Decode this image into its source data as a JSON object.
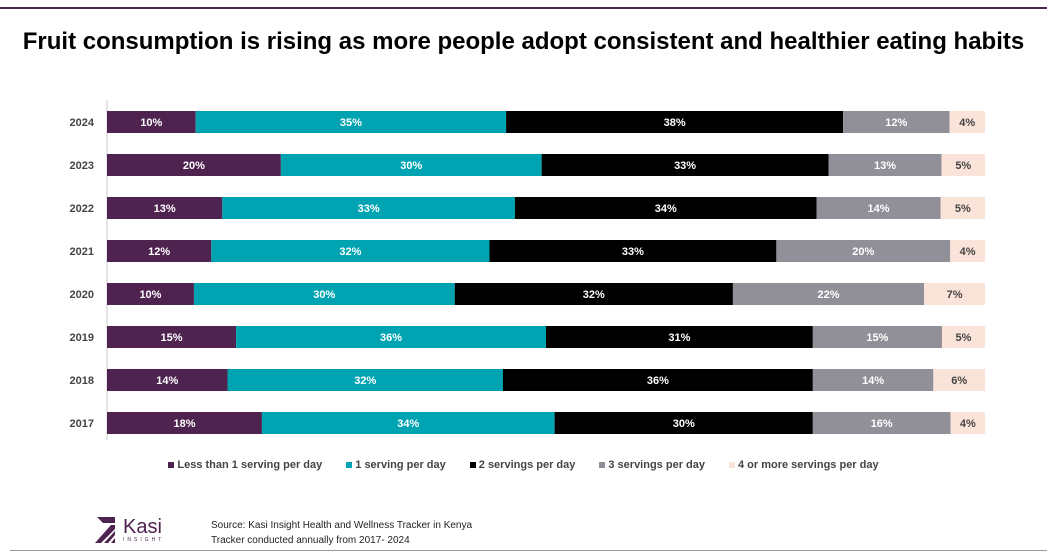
{
  "chart_data": {
    "type": "bar",
    "orientation": "horizontal",
    "stacked": "100%",
    "title": "Fruit consumption is rising as more people adopt consistent and healthier eating habits",
    "categories": [
      "2024",
      "2023",
      "2022",
      "2021",
      "2020",
      "2019",
      "2018",
      "2017"
    ],
    "series": [
      {
        "name": "Less than 1 serving per day",
        "color": "#4f2350",
        "values": [
          10,
          20,
          13,
          12,
          10,
          15,
          14,
          18
        ]
      },
      {
        "name": "1 serving per day",
        "color": "#00a3b1",
        "values": [
          35,
          30,
          33,
          32,
          30,
          36,
          32,
          34
        ]
      },
      {
        "name": "2 servings per day",
        "color": "#000000",
        "values": [
          38,
          33,
          34,
          33,
          32,
          31,
          36,
          30
        ]
      },
      {
        "name": "3 servings per day",
        "color": "#918f97",
        "values": [
          12,
          13,
          14,
          20,
          22,
          15,
          14,
          16
        ]
      },
      {
        "name": "4 or more servings per day",
        "color": "#fae3d8",
        "values": [
          4,
          5,
          5,
          4,
          7,
          5,
          6,
          4
        ]
      }
    ],
    "label_format": "%",
    "legend": "bottom",
    "grid": false
  },
  "footer": {
    "source_line1": "Source: Kasi Insight Health and Wellness Tracker in Kenya",
    "source_line2": "Tracker conducted annually from 2017- 2024",
    "logo_text": "Kasi",
    "logo_subtext": "INSIGHT"
  }
}
